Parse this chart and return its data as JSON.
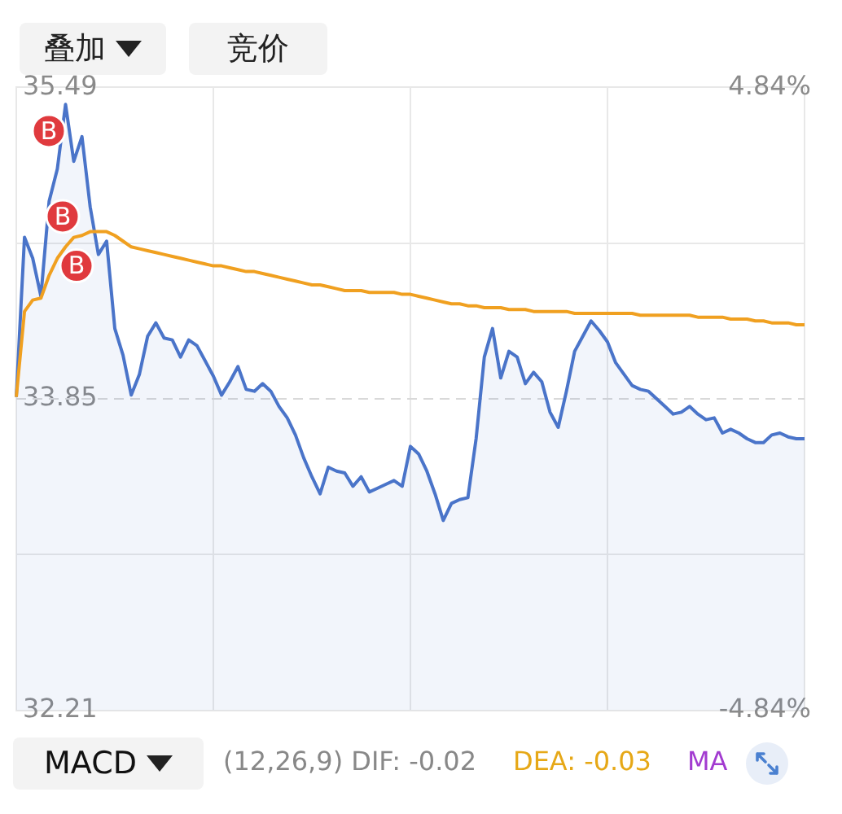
{
  "chart_data": {
    "type": "area",
    "categories": [
      null,
      null,
      null,
      null,
      null,
      null,
      null,
      null,
      null,
      null,
      null,
      null,
      null,
      null,
      null,
      null,
      null,
      null,
      null,
      null,
      null,
      null,
      null,
      null,
      null,
      null,
      null,
      null,
      null,
      null,
      null,
      null,
      null,
      null,
      null,
      null,
      null,
      null,
      null,
      null,
      null,
      null,
      null,
      null,
      null,
      null,
      null,
      null,
      null,
      null,
      null,
      null,
      null,
      null,
      null,
      null,
      null,
      null,
      null,
      null,
      null,
      null,
      null,
      null,
      null,
      null,
      null,
      null,
      null,
      null,
      null,
      null,
      null,
      null,
      null,
      null,
      null,
      null,
      null,
      null,
      null,
      null,
      null,
      null,
      null,
      null,
      null,
      null,
      null,
      null,
      null,
      null,
      null,
      null,
      null,
      null,
      null
    ],
    "ylim": [
      32.21,
      35.49
    ],
    "yticks": [
      32.21,
      {
        "value": 33.03,
        "label": null
      },
      33.85,
      {
        "value": 34.67,
        "label": null
      },
      35.49
    ],
    "y2lim": [
      -4.84,
      4.84
    ],
    "y2ticks": [
      {
        "value": -4.84,
        "label": "-4.84%"
      },
      {
        "value": 4.84,
        "label": "4.84%"
      }
    ],
    "tick_labels": "y",
    "grid": true,
    "legend": false,
    "marker": "none",
    "line_style": "solid",
    "ref_lines": [
      {
        "axis": "y",
        "value": 33.85,
        "color": "#d9d9d9",
        "line_style": "dashed"
      }
    ],
    "series": [
      {
        "color": "#4a74c9",
        "values": [
          33.86,
          34.7,
          34.59,
          34.39,
          34.89,
          35.06,
          35.4,
          35.1,
          35.23,
          34.86,
          34.61,
          34.68,
          34.22,
          34.08,
          33.87,
          33.98,
          34.18,
          34.25,
          34.17,
          34.16,
          34.07,
          34.16,
          34.13,
          34.05,
          33.97,
          33.87,
          33.94,
          34.02,
          33.9,
          33.89,
          33.93,
          33.89,
          33.81,
          33.75,
          33.66,
          33.54,
          33.44,
          33.35,
          33.49,
          33.47,
          33.46,
          33.39,
          33.44,
          33.36,
          33.38,
          33.4,
          33.42,
          33.39,
          33.6,
          33.56,
          33.47,
          33.35,
          33.21,
          33.3,
          33.32,
          33.33,
          33.64,
          34.07,
          34.22,
          33.96,
          34.1,
          34.07,
          33.93,
          33.99,
          33.94,
          33.78,
          33.7,
          33.89,
          34.1,
          34.18,
          34.26,
          34.21,
          34.15,
          34.04,
          33.98,
          33.92,
          33.9,
          33.89,
          33.85,
          33.81,
          33.77,
          33.78,
          33.81,
          33.77,
          33.74,
          33.75,
          33.67,
          33.69,
          33.67,
          33.64,
          33.62,
          33.62,
          33.66,
          33.67,
          33.65,
          33.64,
          33.64
        ]
      },
      {
        "type": "line",
        "color": "#f0a020",
        "values": [
          33.86,
          34.31,
          34.37,
          34.38,
          34.5,
          34.59,
          34.65,
          34.7,
          34.71,
          34.73,
          34.73,
          34.73,
          34.71,
          34.68,
          34.65,
          34.64,
          34.63,
          34.62,
          34.61,
          34.6,
          34.59,
          34.58,
          34.57,
          34.56,
          34.55,
          34.55,
          34.54,
          34.53,
          34.52,
          34.52,
          34.51,
          34.5,
          34.49,
          34.48,
          34.47,
          34.46,
          34.45,
          34.45,
          34.44,
          34.43,
          34.42,
          34.42,
          34.42,
          34.41,
          34.41,
          34.41,
          34.41,
          34.4,
          34.4,
          34.39,
          34.38,
          34.37,
          34.36,
          34.35,
          34.35,
          34.34,
          34.34,
          34.33,
          34.33,
          34.33,
          34.32,
          34.32,
          34.32,
          34.31,
          34.31,
          34.31,
          34.31,
          34.31,
          34.3,
          34.3,
          34.3,
          34.3,
          34.3,
          34.3,
          34.3,
          34.3,
          34.29,
          34.29,
          34.29,
          34.29,
          34.29,
          34.29,
          34.29,
          34.28,
          34.28,
          34.28,
          34.28,
          34.27,
          34.27,
          34.27,
          34.26,
          34.26,
          34.25,
          34.25,
          34.25,
          34.24,
          34.24
        ]
      }
    ],
    "annotations": [
      "叠加",
      "竞价",
      "MACD",
      "(12,26,9) DIF: -0.02",
      "DEA: -0.03",
      "MA",
      {
        "text": "B",
        "y": 35.26
      },
      {
        "text": "B",
        "y": 34.81
      },
      {
        "text": "B",
        "y": 34.55
      }
    ]
  }
}
